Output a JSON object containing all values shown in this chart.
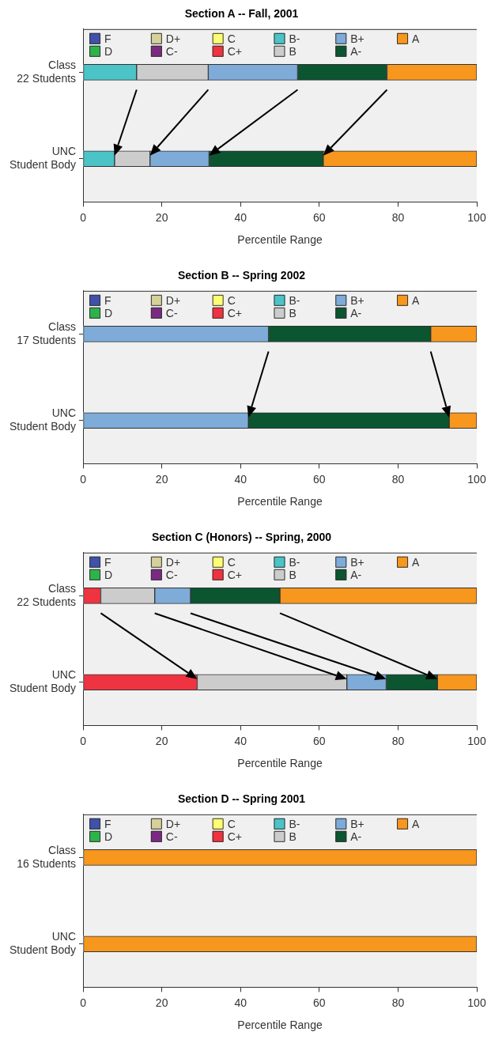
{
  "chart_data": [
    {
      "type": "bar",
      "orientation": "horizontal",
      "stacked": true,
      "title": "Section A -- Fall, 2001",
      "xlabel": "Percentile Range",
      "categories": [
        "Class\n22 Students",
        "UNC\nStudent Body"
      ],
      "xlim": [
        0,
        100
      ],
      "xticks": [
        0,
        20,
        40,
        60,
        80,
        100
      ],
      "grid": false,
      "legend": "top",
      "series": [
        {
          "name": "F",
          "color": "#3f51a8",
          "values": [
            0,
            0
          ]
        },
        {
          "name": "D",
          "color": "#2db34a",
          "values": [
            0,
            0
          ]
        },
        {
          "name": "D+",
          "color": "#d6d09a",
          "values": [
            0,
            0
          ]
        },
        {
          "name": "C-",
          "color": "#7b2a82",
          "values": [
            0,
            0
          ]
        },
        {
          "name": "C",
          "color": "#ffff73",
          "values": [
            0,
            0
          ]
        },
        {
          "name": "C+",
          "color": "#ef3340",
          "values": [
            0,
            0
          ]
        },
        {
          "name": "B-",
          "color": "#4cc3c6",
          "values": [
            13.6,
            8
          ]
        },
        {
          "name": "B",
          "color": "#cccccc",
          "values": [
            18.2,
            9
          ]
        },
        {
          "name": "B+",
          "color": "#7eabd8",
          "values": [
            22.7,
            15
          ]
        },
        {
          "name": "A-",
          "color": "#0b5530",
          "values": [
            22.7,
            29
          ]
        },
        {
          "name": "A",
          "color": "#f7971e",
          "values": [
            22.8,
            39
          ]
        }
      ]
    },
    {
      "type": "bar",
      "orientation": "horizontal",
      "stacked": true,
      "title": "Section B -- Spring 2002",
      "xlabel": "Percentile Range",
      "categories": [
        "Class\n17 Students",
        "UNC\nStudent Body"
      ],
      "xlim": [
        0,
        100
      ],
      "xticks": [
        0,
        20,
        40,
        60,
        80,
        100
      ],
      "grid": false,
      "legend": "top",
      "series": [
        {
          "name": "F",
          "color": "#3f51a8",
          "values": [
            0,
            0
          ]
        },
        {
          "name": "D",
          "color": "#2db34a",
          "values": [
            0,
            0
          ]
        },
        {
          "name": "D+",
          "color": "#d6d09a",
          "values": [
            0,
            0
          ]
        },
        {
          "name": "C-",
          "color": "#7b2a82",
          "values": [
            0,
            0
          ]
        },
        {
          "name": "C",
          "color": "#ffff73",
          "values": [
            0,
            0
          ]
        },
        {
          "name": "C+",
          "color": "#ef3340",
          "values": [
            0,
            0
          ]
        },
        {
          "name": "B-",
          "color": "#4cc3c6",
          "values": [
            0,
            0
          ]
        },
        {
          "name": "B",
          "color": "#cccccc",
          "values": [
            0,
            0
          ]
        },
        {
          "name": "B+",
          "color": "#7eabd8",
          "values": [
            47.1,
            42
          ]
        },
        {
          "name": "A-",
          "color": "#0b5530",
          "values": [
            41.2,
            51
          ]
        },
        {
          "name": "A",
          "color": "#f7971e",
          "values": [
            11.7,
            7
          ]
        }
      ]
    },
    {
      "type": "bar",
      "orientation": "horizontal",
      "stacked": true,
      "title": "Section C (Honors) -- Spring, 2000",
      "xlabel": "Percentile Range",
      "categories": [
        "Class\n22 Students",
        "UNC\nStudent Body"
      ],
      "xlim": [
        0,
        100
      ],
      "xticks": [
        0,
        20,
        40,
        60,
        80,
        100
      ],
      "grid": false,
      "legend": "top",
      "series": [
        {
          "name": "F",
          "color": "#3f51a8",
          "values": [
            0,
            0
          ]
        },
        {
          "name": "D",
          "color": "#2db34a",
          "values": [
            0,
            0
          ]
        },
        {
          "name": "D+",
          "color": "#d6d09a",
          "values": [
            0,
            0
          ]
        },
        {
          "name": "C-",
          "color": "#7b2a82",
          "values": [
            0,
            0
          ]
        },
        {
          "name": "C",
          "color": "#ffff73",
          "values": [
            0,
            0
          ]
        },
        {
          "name": "C+",
          "color": "#ef3340",
          "values": [
            4.5,
            29
          ]
        },
        {
          "name": "B-",
          "color": "#4cc3c6",
          "values": [
            0,
            0
          ]
        },
        {
          "name": "B",
          "color": "#cccccc",
          "values": [
            13.7,
            38
          ]
        },
        {
          "name": "B+",
          "color": "#7eabd8",
          "values": [
            9.1,
            10
          ]
        },
        {
          "name": "A-",
          "color": "#0b5530",
          "values": [
            22.7,
            13
          ]
        },
        {
          "name": "A",
          "color": "#f7971e",
          "values": [
            50,
            10
          ]
        }
      ]
    },
    {
      "type": "bar",
      "orientation": "horizontal",
      "stacked": true,
      "title": "Section D -- Spring 2001",
      "xlabel": "Percentile Range",
      "categories": [
        "Class\n16 Students",
        "UNC\nStudent Body"
      ],
      "xlim": [
        0,
        100
      ],
      "xticks": [
        0,
        20,
        40,
        60,
        80,
        100
      ],
      "grid": false,
      "legend": "top",
      "series": [
        {
          "name": "F",
          "color": "#3f51a8",
          "values": [
            0,
            0
          ]
        },
        {
          "name": "D",
          "color": "#2db34a",
          "values": [
            0,
            0
          ]
        },
        {
          "name": "D+",
          "color": "#d6d09a",
          "values": [
            0,
            0
          ]
        },
        {
          "name": "C-",
          "color": "#7b2a82",
          "values": [
            0,
            0
          ]
        },
        {
          "name": "C",
          "color": "#ffff73",
          "values": [
            0,
            0
          ]
        },
        {
          "name": "C+",
          "color": "#ef3340",
          "values": [
            0,
            0
          ]
        },
        {
          "name": "B-",
          "color": "#4cc3c6",
          "values": [
            0,
            0
          ]
        },
        {
          "name": "B",
          "color": "#cccccc",
          "values": [
            0,
            0
          ]
        },
        {
          "name": "B+",
          "color": "#7eabd8",
          "values": [
            0,
            0
          ]
        },
        {
          "name": "A-",
          "color": "#0b5530",
          "values": [
            0,
            0
          ]
        },
        {
          "name": "A",
          "color": "#f7971e",
          "values": [
            100,
            100
          ]
        }
      ]
    }
  ]
}
